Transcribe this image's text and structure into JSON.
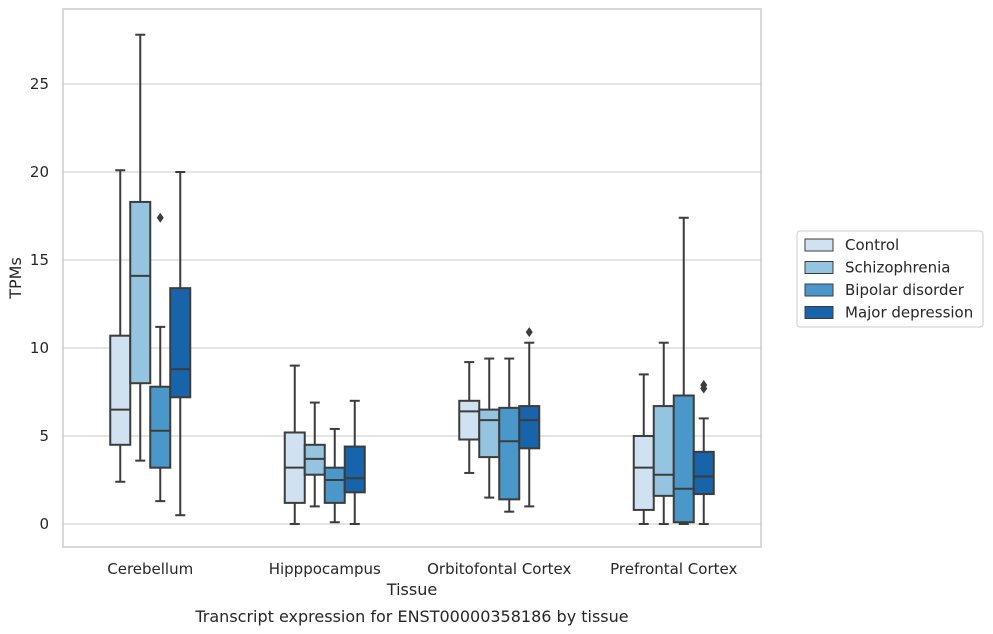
{
  "chart_data": {
    "type": "box",
    "caption": "Transcript expression for ENST00000358186 by tissue",
    "xlabel": "Tissue",
    "ylabel": "TPMs",
    "ylim": [
      -1.3,
      29
    ],
    "yticks": [
      0,
      5,
      10,
      15,
      20,
      25
    ],
    "grid": "horizontal",
    "legend_position": "right",
    "categories": [
      "Cerebellum",
      "Hipppocampus",
      "Orbitofontal Cortex",
      "Prefrontal Cortex"
    ],
    "series": [
      {
        "name": "Control",
        "color": "#d0e1f2",
        "boxes": [
          {
            "whislo": 2.4,
            "q1": 4.5,
            "med": 6.5,
            "q3": 10.7,
            "whishi": 20.1,
            "fliers": []
          },
          {
            "whislo": 0.0,
            "q1": 1.2,
            "med": 3.2,
            "q3": 5.2,
            "whishi": 9.0,
            "fliers": []
          },
          {
            "whislo": 2.9,
            "q1": 4.8,
            "med": 6.4,
            "q3": 7.0,
            "whishi": 9.2,
            "fliers": []
          },
          {
            "whislo": 0.0,
            "q1": 0.8,
            "med": 3.2,
            "q3": 5.0,
            "whishi": 8.5,
            "fliers": []
          }
        ]
      },
      {
        "name": "Schizophrenia",
        "color": "#94c4df",
        "boxes": [
          {
            "whislo": 3.6,
            "q1": 8.0,
            "med": 14.1,
            "q3": 18.3,
            "whishi": 27.8,
            "fliers": []
          },
          {
            "whislo": 1.0,
            "q1": 2.8,
            "med": 3.7,
            "q3": 4.5,
            "whishi": 6.9,
            "fliers": []
          },
          {
            "whislo": 1.5,
            "q1": 3.8,
            "med": 5.9,
            "q3": 6.5,
            "whishi": 9.4,
            "fliers": []
          },
          {
            "whislo": 0.0,
            "q1": 1.6,
            "med": 2.8,
            "q3": 6.7,
            "whishi": 10.3,
            "fliers": []
          }
        ]
      },
      {
        "name": "Bipolar disorder",
        "color": "#4a98c9",
        "boxes": [
          {
            "whislo": 1.3,
            "q1": 3.2,
            "med": 5.3,
            "q3": 7.8,
            "whishi": 11.2,
            "fliers": [
              17.4
            ]
          },
          {
            "whislo": 0.1,
            "q1": 1.2,
            "med": 2.5,
            "q3": 3.2,
            "whishi": 5.4,
            "fliers": []
          },
          {
            "whislo": 0.7,
            "q1": 1.4,
            "med": 4.7,
            "q3": 6.6,
            "whishi": 9.4,
            "fliers": []
          },
          {
            "whislo": 0.0,
            "q1": 0.1,
            "med": 2.0,
            "q3": 7.3,
            "whishi": 17.4,
            "fliers": []
          }
        ]
      },
      {
        "name": "Major depression",
        "color": "#1764ab",
        "boxes": [
          {
            "whislo": 0.5,
            "q1": 7.2,
            "med": 8.8,
            "q3": 13.4,
            "whishi": 20.0,
            "fliers": []
          },
          {
            "whislo": 0.0,
            "q1": 1.8,
            "med": 2.6,
            "q3": 4.4,
            "whishi": 7.0,
            "fliers": []
          },
          {
            "whislo": 1.0,
            "q1": 4.3,
            "med": 5.9,
            "q3": 6.7,
            "whishi": 10.3,
            "fliers": [
              10.9
            ]
          },
          {
            "whislo": 0.0,
            "q1": 1.7,
            "med": 2.7,
            "q3": 4.1,
            "whishi": 6.0,
            "fliers": [
              7.7,
              7.9
            ]
          }
        ]
      }
    ]
  }
}
